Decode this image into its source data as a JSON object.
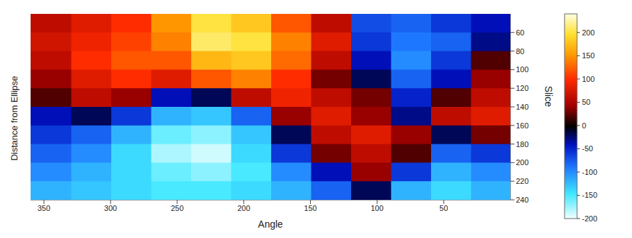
{
  "chart_data": {
    "type": "heatmap",
    "x_label": "Angle",
    "y_label": "Slice",
    "xlim": [
      0,
      360
    ],
    "xticks": [
      50,
      100,
      150,
      200,
      250,
      300,
      350
    ],
    "ylim": [
      40,
      240
    ],
    "yticks": [
      60,
      80,
      100,
      120,
      140,
      160,
      180,
      200,
      220,
      240
    ],
    "x": [
      15,
      45,
      75,
      105,
      135,
      165,
      195,
      225,
      255,
      285,
      315,
      345
    ],
    "y": [
      50,
      70,
      90,
      110,
      130,
      150,
      170,
      190,
      210,
      230
    ],
    "z": [
      [
        -40,
        -60,
        -80,
        -70,
        60,
        120,
        180,
        200,
        150,
        100,
        80,
        60
      ],
      [
        -30,
        -80,
        -90,
        -60,
        80,
        140,
        200,
        210,
        140,
        110,
        90,
        70
      ],
      [
        20,
        -60,
        -100,
        -40,
        60,
        130,
        180,
        170,
        120,
        120,
        100,
        60
      ],
      [
        40,
        -40,
        -80,
        -20,
        30,
        100,
        140,
        120,
        80,
        100,
        80,
        40
      ],
      [
        60,
        20,
        -50,
        30,
        60,
        90,
        60,
        -20,
        -40,
        40,
        60,
        20
      ],
      [
        80,
        60,
        -30,
        40,
        80,
        40,
        -80,
        -130,
        -120,
        -60,
        -20,
        -40
      ],
      [
        30,
        -20,
        40,
        80,
        60,
        -20,
        -130,
        -170,
        -160,
        -120,
        -80,
        -60
      ],
      [
        -60,
        -80,
        20,
        60,
        30,
        -60,
        -140,
        -190,
        -180,
        -140,
        -100,
        -80
      ],
      [
        -100,
        -120,
        -60,
        40,
        -40,
        -100,
        -150,
        -170,
        -160,
        -140,
        -120,
        -100
      ],
      [
        -120,
        -140,
        -120,
        -20,
        -80,
        -120,
        -140,
        -150,
        -150,
        -140,
        -130,
        -120
      ]
    ],
    "colorbar": {
      "label": "Distance from Ellipse",
      "range": [
        -200,
        240
      ],
      "ticks": [
        -200,
        -150,
        -100,
        -50,
        0,
        50,
        100,
        150,
        200
      ]
    }
  }
}
